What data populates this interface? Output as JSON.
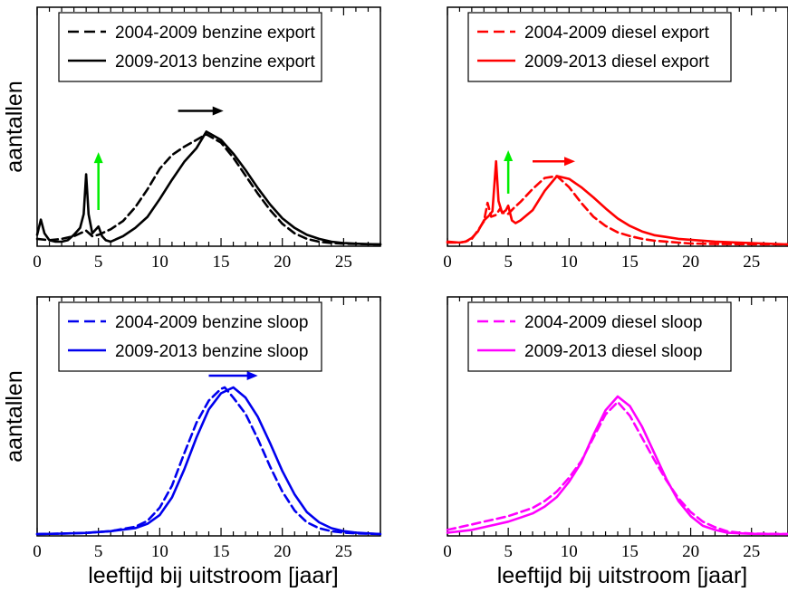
{
  "chart_data": [
    {
      "type": "line",
      "title": "",
      "xlabel": "",
      "ylabel": "aantallen",
      "xlim": [
        0,
        28
      ],
      "ylim": [
        0,
        1
      ],
      "xticks": [
        0,
        5,
        10,
        15,
        20,
        25
      ],
      "color": "#000000",
      "legend": "top",
      "series": [
        {
          "name": "2004-2009 benzine export",
          "dash": "dashed",
          "x": [
            0,
            1,
            2,
            3,
            3.5,
            4,
            4.5,
            5,
            6,
            7,
            8,
            9,
            10,
            11,
            12,
            13,
            13.8,
            15,
            16,
            17,
            18,
            19,
            20,
            21,
            22,
            23,
            24,
            25,
            26,
            27,
            28
          ],
          "y": [
            0.04,
            0.03,
            0.04,
            0.06,
            0.08,
            0.1,
            0.06,
            0.07,
            0.11,
            0.17,
            0.27,
            0.4,
            0.55,
            0.65,
            0.71,
            0.76,
            0.8,
            0.74,
            0.63,
            0.5,
            0.37,
            0.25,
            0.15,
            0.08,
            0.04,
            0.02,
            0.01,
            0.005,
            0.003,
            0.001,
            0
          ]
        },
        {
          "name": "2009-2013 benzine export",
          "dash": "solid",
          "x": [
            0,
            0.3,
            0.6,
            1,
            1.5,
            2,
            2.5,
            3,
            3.5,
            3.8,
            4,
            4.2,
            4.5,
            5,
            5.3,
            5.6,
            6,
            7,
            8,
            9,
            10,
            11,
            12,
            13,
            13.8,
            15,
            16,
            17,
            18,
            19,
            20,
            21,
            22,
            23,
            24,
            25,
            26,
            27,
            28
          ],
          "y": [
            0.07,
            0.18,
            0.08,
            0.03,
            0.02,
            0.02,
            0.03,
            0.07,
            0.12,
            0.22,
            0.51,
            0.22,
            0.08,
            0.13,
            0.06,
            0.03,
            0.02,
            0.06,
            0.12,
            0.2,
            0.33,
            0.47,
            0.6,
            0.7,
            0.82,
            0.76,
            0.66,
            0.54,
            0.41,
            0.29,
            0.19,
            0.12,
            0.07,
            0.04,
            0.02,
            0.01,
            0.005,
            0.002,
            0
          ]
        }
      ],
      "annotations": [
        {
          "shape": "arrow",
          "direction": "up",
          "color": "#00ee00",
          "x": 5,
          "y_from": 0.25,
          "y_to": 0.67
        },
        {
          "shape": "arrow",
          "direction": "right",
          "color": "#000000",
          "y": 0.97,
          "x_from": 11.5,
          "x_to": 15.2
        }
      ]
    },
    {
      "type": "line",
      "title": "",
      "xlabel": "",
      "ylabel": "",
      "xlim": [
        0,
        28
      ],
      "ylim": [
        0,
        1
      ],
      "xticks": [
        0,
        5,
        10,
        15,
        20,
        25
      ],
      "color": "#ff0000",
      "legend": "top",
      "series": [
        {
          "name": "2004-2009 diesel export",
          "dash": "dashed",
          "x": [
            0,
            1,
            1.5,
            2,
            2.5,
            3,
            3.3,
            3.6,
            4,
            4.3,
            4.6,
            5,
            5.5,
            6,
            7,
            8,
            9,
            10,
            11,
            12,
            13,
            14,
            15,
            16,
            17,
            18,
            19,
            20,
            22,
            24,
            26,
            28
          ],
          "y": [
            0.02,
            0.02,
            0.03,
            0.06,
            0.15,
            0.25,
            0.45,
            0.3,
            0.32,
            0.38,
            0.34,
            0.33,
            0.4,
            0.46,
            0.6,
            0.72,
            0.74,
            0.62,
            0.45,
            0.3,
            0.2,
            0.13,
            0.09,
            0.06,
            0.04,
            0.03,
            0.02,
            0.01,
            0.005,
            0.003,
            0.002,
            0
          ]
        },
        {
          "name": "2009-2013 diesel export",
          "dash": "solid",
          "x": [
            0,
            1,
            1.5,
            2,
            2.5,
            3,
            3.4,
            3.7,
            4,
            4.2,
            4.5,
            4.8,
            5,
            5.3,
            5.6,
            6,
            7,
            8,
            9,
            10,
            11,
            12,
            13,
            14,
            15,
            16,
            17,
            18,
            19,
            20,
            21,
            22,
            24,
            26,
            28
          ],
          "y": [
            0.03,
            0.02,
            0.03,
            0.07,
            0.14,
            0.26,
            0.31,
            0.36,
            0.9,
            0.47,
            0.34,
            0.37,
            0.42,
            0.26,
            0.23,
            0.26,
            0.37,
            0.58,
            0.74,
            0.71,
            0.62,
            0.51,
            0.39,
            0.28,
            0.2,
            0.14,
            0.1,
            0.08,
            0.06,
            0.05,
            0.04,
            0.03,
            0.02,
            0.01,
            0
          ]
        }
      ],
      "annotations": [
        {
          "shape": "arrow",
          "direction": "up",
          "color": "#00ee00",
          "x": 5,
          "y_from": 0.55,
          "y_to": 1.02
        },
        {
          "shape": "arrow",
          "direction": "right",
          "color": "#ff0000",
          "y": 0.9,
          "x_from": 7,
          "x_to": 10.5
        }
      ]
    },
    {
      "type": "line",
      "title": "",
      "xlabel": "leeftijd bij uitstroom [jaar]",
      "ylabel": "aantallen",
      "xlim": [
        0,
        28
      ],
      "ylim": [
        0,
        1
      ],
      "xticks": [
        0,
        5,
        10,
        15,
        20,
        25
      ],
      "color": "#0000ee",
      "legend": "top",
      "series": [
        {
          "name": "2004-2009 benzine sloop",
          "dash": "dashed",
          "x": [
            0,
            2,
            4,
            6,
            8,
            9,
            10,
            11,
            12,
            13,
            14,
            15,
            15.3,
            16,
            17,
            18,
            19,
            20,
            21,
            22,
            23,
            24,
            25,
            26,
            28
          ],
          "y": [
            0,
            0.003,
            0.008,
            0.02,
            0.05,
            0.09,
            0.18,
            0.33,
            0.55,
            0.76,
            0.91,
            0.99,
            1.0,
            0.93,
            0.82,
            0.65,
            0.46,
            0.29,
            0.16,
            0.08,
            0.04,
            0.02,
            0.01,
            0.005,
            0
          ]
        },
        {
          "name": "2009-2013 benzine sloop",
          "dash": "solid",
          "x": [
            0,
            2,
            4,
            6,
            8,
            9,
            10,
            11,
            12,
            13,
            14,
            15,
            16,
            17,
            18,
            19,
            20,
            21,
            22,
            23,
            24,
            25,
            26,
            28
          ],
          "y": [
            0,
            0.003,
            0.008,
            0.02,
            0.04,
            0.07,
            0.13,
            0.25,
            0.44,
            0.66,
            0.85,
            0.96,
            1.0,
            0.93,
            0.8,
            0.62,
            0.43,
            0.27,
            0.15,
            0.08,
            0.04,
            0.02,
            0.01,
            0
          ]
        }
      ],
      "annotations": [
        {
          "shape": "arrow",
          "direction": "right",
          "color": "#0000ee",
          "y": 1.08,
          "x_from": 14,
          "x_to": 18
        }
      ]
    },
    {
      "type": "line",
      "title": "",
      "xlabel": "leeftijd bij uitstroom [jaar]",
      "ylabel": "",
      "xlim": [
        0,
        28
      ],
      "ylim": [
        0,
        1
      ],
      "xticks": [
        0,
        5,
        10,
        15,
        20,
        25
      ],
      "color": "#ff00ff",
      "legend": "top",
      "series": [
        {
          "name": "2004-2009 diesel sloop",
          "dash": "dashed",
          "x": [
            0,
            1,
            2,
            3,
            4,
            5,
            6,
            7,
            8,
            9,
            10,
            11,
            12,
            13,
            14,
            15,
            16,
            17,
            18,
            19,
            20,
            21,
            22,
            23,
            24,
            25,
            26,
            27,
            28
          ],
          "y": [
            0.03,
            0.05,
            0.07,
            0.09,
            0.11,
            0.13,
            0.16,
            0.19,
            0.24,
            0.31,
            0.41,
            0.53,
            0.7,
            0.87,
            0.96,
            0.86,
            0.7,
            0.54,
            0.39,
            0.26,
            0.16,
            0.09,
            0.05,
            0.02,
            0.01,
            0.004,
            0.002,
            0.001,
            0
          ]
        },
        {
          "name": "2009-2013 diesel sloop",
          "dash": "solid",
          "x": [
            0,
            1,
            2,
            3,
            4,
            5,
            6,
            7,
            8,
            9,
            10,
            11,
            12,
            13,
            14,
            15,
            16,
            17,
            18,
            19,
            20,
            21,
            22,
            23,
            24,
            25,
            26,
            27,
            28
          ],
          "y": [
            0.01,
            0.02,
            0.03,
            0.05,
            0.07,
            0.09,
            0.12,
            0.15,
            0.2,
            0.27,
            0.38,
            0.52,
            0.72,
            0.9,
            1.0,
            0.93,
            0.78,
            0.59,
            0.4,
            0.24,
            0.13,
            0.06,
            0.03,
            0.01,
            0.005,
            0.002,
            0.001,
            0,
            0
          ]
        }
      ],
      "annotations": []
    }
  ]
}
